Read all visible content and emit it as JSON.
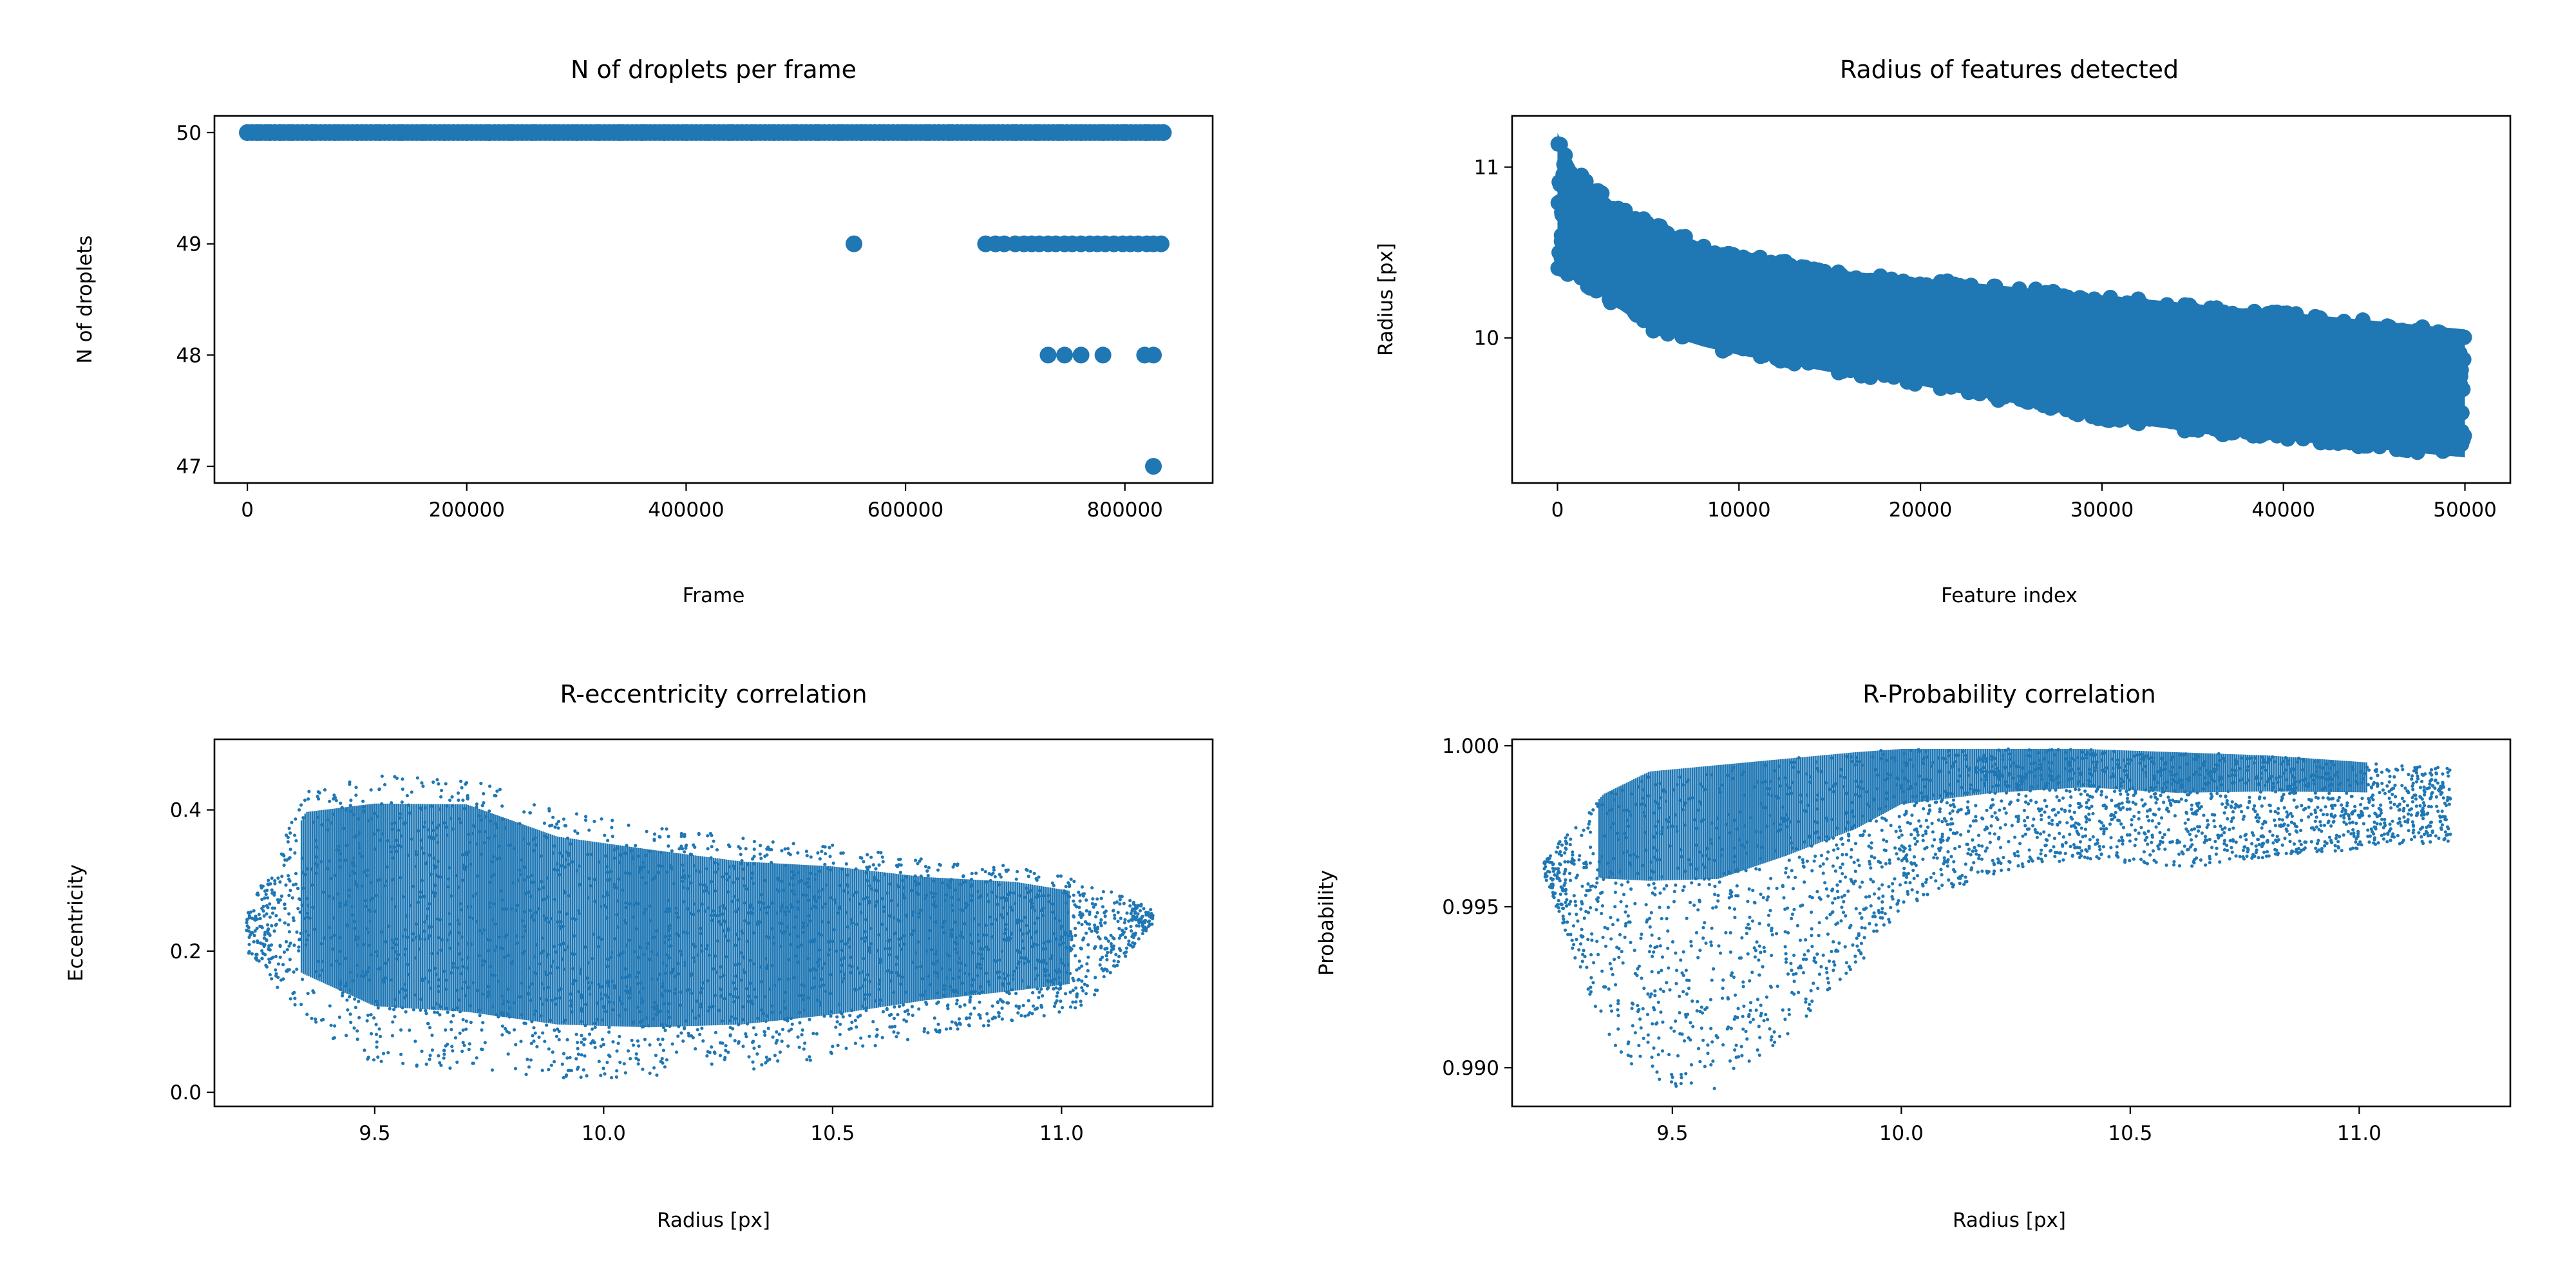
{
  "colors": {
    "series": "#1f77b4",
    "axes": "#000000",
    "background": "#ffffff"
  },
  "chart_data": [
    {
      "id": "panel-droplets",
      "type": "scatter",
      "title": "N of droplets per frame",
      "xlabel": "Frame",
      "ylabel": "N of droplets",
      "xlim": [
        -30000,
        880000
      ],
      "ylim": [
        46.85,
        50.15
      ],
      "xticks": [
        0,
        200000,
        400000,
        600000,
        800000
      ],
      "xtick_labels": [
        "0",
        "200000",
        "400000",
        "600000",
        "800000"
      ],
      "yticks": [
        47,
        48,
        49,
        50
      ],
      "ytick_labels": [
        "47",
        "48",
        "49",
        "50"
      ],
      "grid": false,
      "marker": "dot",
      "description_of_points": "mostly 50 droplets across all frames; drops to 49 at a few frames; 48 and 47 rarely near the end",
      "series": [
        {
          "x": [
            0,
            10000,
            20000,
            30000,
            40000,
            60000,
            80000,
            100000,
            120000,
            140000,
            160000,
            180000,
            200000,
            220000,
            240000,
            260000,
            280000,
            300000,
            320000,
            340000,
            360000,
            380000,
            400000,
            420000,
            440000,
            460000,
            480000,
            500000,
            520000,
            540000,
            560000,
            580000,
            600000,
            620000,
            640000,
            660000,
            680000,
            700000,
            720000,
            740000,
            760000,
            780000,
            800000,
            820000,
            835000
          ],
          "y": [
            50,
            50,
            50,
            50,
            50,
            50,
            50,
            50,
            50,
            50,
            50,
            50,
            50,
            50,
            50,
            50,
            50,
            50,
            50,
            50,
            50,
            50,
            50,
            50,
            50,
            50,
            50,
            50,
            50,
            50,
            50,
            50,
            50,
            50,
            50,
            50,
            50,
            50,
            50,
            50,
            50,
            50,
            50,
            50,
            50
          ]
        },
        {
          "x": [
            553000,
            673000,
            682000,
            690000,
            700000,
            708000,
            715000,
            722000,
            730000,
            737000,
            745000,
            752000,
            760000,
            768000,
            775000,
            782000,
            790000,
            798000,
            805000,
            812000,
            820000,
            826000,
            833000
          ],
          "y": [
            49,
            49,
            49,
            49,
            49,
            49,
            49,
            49,
            49,
            49,
            49,
            49,
            49,
            49,
            49,
            49,
            49,
            49,
            49,
            49,
            49,
            49,
            49
          ]
        },
        {
          "x": [
            730000,
            745000,
            760000,
            780000,
            818000,
            826000
          ],
          "y": [
            48,
            48,
            48,
            48,
            48,
            48
          ]
        },
        {
          "x": [
            826000
          ],
          "y": [
            47
          ]
        }
      ]
    },
    {
      "id": "panel-radius",
      "type": "scatter",
      "title": "Radius of features detected",
      "xlabel": "Feature index",
      "ylabel": "Radius [px]",
      "xlim": [
        -2500,
        52500
      ],
      "ylim": [
        9.15,
        11.3
      ],
      "xticks": [
        0,
        10000,
        20000,
        30000,
        40000,
        50000
      ],
      "xtick_labels": [
        "0",
        "10000",
        "20000",
        "30000",
        "40000",
        "50000"
      ],
      "yticks": [
        10,
        11
      ],
      "ytick_labels": [
        "10",
        "11"
      ],
      "grid": false,
      "marker": "dot",
      "band": {
        "x": [
          0,
          1000,
          3000,
          5000,
          8000,
          10000,
          15000,
          20000,
          25000,
          30000,
          35000,
          40000,
          45000,
          50000
        ],
        "upper": [
          11.2,
          11.0,
          10.8,
          10.7,
          10.55,
          10.5,
          10.4,
          10.35,
          10.3,
          10.25,
          10.2,
          10.15,
          10.1,
          10.05
        ],
        "lower": [
          10.4,
          10.35,
          10.2,
          10.05,
          9.95,
          9.9,
          9.8,
          9.72,
          9.62,
          9.52,
          9.45,
          9.4,
          9.35,
          9.3
        ]
      }
    },
    {
      "id": "panel-ecc",
      "type": "scatter",
      "title": "R-eccentricity correlation",
      "xlabel": "Radius [px]",
      "ylabel": "Eccentricity",
      "xlim": [
        9.15,
        11.33
      ],
      "ylim": [
        -0.02,
        0.5
      ],
      "xticks": [
        9.5,
        10.0,
        10.5,
        11.0
      ],
      "xtick_labels": [
        "9.5",
        "10.0",
        "10.5",
        "11.0"
      ],
      "yticks": [
        0.0,
        0.2,
        0.4
      ],
      "ytick_labels": [
        "0.0",
        "0.2",
        "0.4"
      ],
      "grid": false,
      "marker": "small-dot",
      "band": {
        "x": [
          9.22,
          9.35,
          9.5,
          9.7,
          9.9,
          10.1,
          10.3,
          10.5,
          10.7,
          10.9,
          11.05,
          11.2
        ],
        "upper": [
          0.25,
          0.43,
          0.45,
          0.45,
          0.4,
          0.38,
          0.36,
          0.35,
          0.33,
          0.32,
          0.3,
          0.26
        ],
        "lower": [
          0.2,
          0.1,
          0.04,
          0.03,
          0.02,
          0.02,
          0.03,
          0.05,
          0.08,
          0.1,
          0.12,
          0.24
        ]
      }
    },
    {
      "id": "panel-prob",
      "type": "scatter",
      "title": "R-Probability correlation",
      "xlabel": "Radius [px]",
      "ylabel": "Probability",
      "xlim": [
        9.15,
        11.33
      ],
      "ylim": [
        0.9888,
        1.0002
      ],
      "xticks": [
        9.5,
        10.0,
        10.5,
        11.0
      ],
      "xtick_labels": [
        "9.5",
        "10.0",
        "10.5",
        "11.0"
      ],
      "yticks": [
        0.99,
        0.995,
        1.0
      ],
      "ytick_labels": [
        "0.990",
        "0.995",
        "1.000"
      ],
      "grid": false,
      "marker": "small-dot",
      "band": {
        "x": [
          9.22,
          9.35,
          9.45,
          9.6,
          9.75,
          9.9,
          10.0,
          10.2,
          10.4,
          10.6,
          10.8,
          11.0,
          11.2
        ],
        "upper": [
          0.9965,
          0.9985,
          0.9992,
          0.9994,
          0.9996,
          0.9998,
          0.9999,
          0.9999,
          0.9999,
          0.9998,
          0.9997,
          0.9995,
          0.9993
        ],
        "lower": [
          0.996,
          0.991,
          0.9895,
          0.9893,
          0.991,
          0.993,
          0.995,
          0.996,
          0.9965,
          0.9962,
          0.9965,
          0.9968,
          0.997
        ]
      }
    }
  ]
}
